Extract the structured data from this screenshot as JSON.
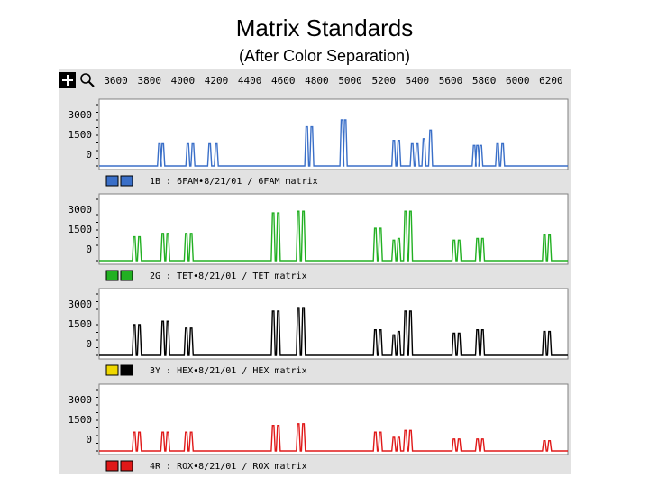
{
  "title": "Matrix Standards",
  "subtitle": "(After Color Separation)",
  "x_ticks": [
    "3600",
    "3800",
    "4000",
    "4200",
    "4400",
    "4600",
    "4800",
    "5000",
    "5200",
    "5400",
    "5600",
    "5800",
    "6000",
    "6200"
  ],
  "y_ticks": [
    "3000",
    "1500",
    "0"
  ],
  "chart_data": [
    {
      "type": "line",
      "name": "1B",
      "caption": "1B : 6FAM•8/21/01 / 6FAM matrix",
      "color": "#3a6fc8",
      "swatch_colors": [
        "#3a6fc8",
        "#3a6fc8"
      ],
      "xlim": [
        3500,
        6300
      ],
      "ylim": [
        0,
        3600
      ],
      "peaks": [
        [
          3860,
          1300
        ],
        [
          3880,
          1300
        ],
        [
          4030,
          1300
        ],
        [
          4060,
          1300
        ],
        [
          4160,
          1300
        ],
        [
          4200,
          1300
        ],
        [
          4740,
          2300
        ],
        [
          4770,
          2300
        ],
        [
          4950,
          2700
        ],
        [
          4970,
          2700
        ],
        [
          5260,
          1500
        ],
        [
          5290,
          1500
        ],
        [
          5370,
          1300
        ],
        [
          5400,
          1300
        ],
        [
          5440,
          1600
        ],
        [
          5480,
          2100
        ],
        [
          5740,
          1200
        ],
        [
          5760,
          1200
        ],
        [
          5780,
          1200
        ],
        [
          5880,
          1300
        ],
        [
          5910,
          1300
        ]
      ]
    },
    {
      "type": "line",
      "name": "2G",
      "caption": "2G : TET•8/21/01 / TET matrix",
      "color": "#22b022",
      "swatch_colors": [
        "#22b022",
        "#22b022"
      ],
      "xlim": [
        3500,
        6300
      ],
      "ylim": [
        0,
        3600
      ],
      "peaks": [
        [
          3710,
          1400
        ],
        [
          3740,
          1400
        ],
        [
          3880,
          1600
        ],
        [
          3910,
          1600
        ],
        [
          4020,
          1600
        ],
        [
          4050,
          1600
        ],
        [
          4540,
          2800
        ],
        [
          4570,
          2800
        ],
        [
          4690,
          2900
        ],
        [
          4720,
          2900
        ],
        [
          5150,
          1900
        ],
        [
          5180,
          1900
        ],
        [
          5260,
          1200
        ],
        [
          5290,
          1300
        ],
        [
          5330,
          2900
        ],
        [
          5360,
          2900
        ],
        [
          5620,
          1200
        ],
        [
          5650,
          1200
        ],
        [
          5760,
          1300
        ],
        [
          5790,
          1300
        ],
        [
          6160,
          1500
        ],
        [
          6190,
          1500
        ]
      ]
    },
    {
      "type": "line",
      "name": "3Y",
      "caption": "3Y : HEX•8/21/01 / HEX matrix",
      "color": "#000000",
      "swatch_colors": [
        "#f0d800",
        "#000000"
      ],
      "xlim": [
        3500,
        6300
      ],
      "ylim": [
        0,
        3600
      ],
      "peaks": [
        [
          3710,
          1800
        ],
        [
          3740,
          1800
        ],
        [
          3880,
          2000
        ],
        [
          3910,
          2000
        ],
        [
          4020,
          1600
        ],
        [
          4050,
          1600
        ],
        [
          4540,
          2600
        ],
        [
          4570,
          2600
        ],
        [
          4690,
          2800
        ],
        [
          4720,
          2800
        ],
        [
          5150,
          1500
        ],
        [
          5180,
          1500
        ],
        [
          5260,
          1200
        ],
        [
          5290,
          1400
        ],
        [
          5330,
          2600
        ],
        [
          5360,
          2600
        ],
        [
          5620,
          1300
        ],
        [
          5650,
          1300
        ],
        [
          5760,
          1500
        ],
        [
          5790,
          1500
        ],
        [
          6160,
          1400
        ],
        [
          6190,
          1400
        ]
      ]
    },
    {
      "type": "line",
      "name": "4R",
      "caption": "4R : ROX•8/21/01 / ROX matrix",
      "color": "#e01818",
      "swatch_colors": [
        "#e01818",
        "#e01818"
      ],
      "xlim": [
        3500,
        6300
      ],
      "ylim": [
        0,
        3600
      ],
      "peaks": [
        [
          3710,
          1100
        ],
        [
          3740,
          1100
        ],
        [
          3880,
          1100
        ],
        [
          3910,
          1100
        ],
        [
          4020,
          1100
        ],
        [
          4050,
          1100
        ],
        [
          4540,
          1500
        ],
        [
          4570,
          1500
        ],
        [
          4690,
          1600
        ],
        [
          4720,
          1600
        ],
        [
          5150,
          1100
        ],
        [
          5180,
          1100
        ],
        [
          5260,
          800
        ],
        [
          5290,
          800
        ],
        [
          5330,
          1200
        ],
        [
          5360,
          1200
        ],
        [
          5620,
          700
        ],
        [
          5650,
          700
        ],
        [
          5760,
          700
        ],
        [
          5790,
          700
        ],
        [
          6160,
          600
        ],
        [
          6190,
          600
        ]
      ]
    }
  ]
}
